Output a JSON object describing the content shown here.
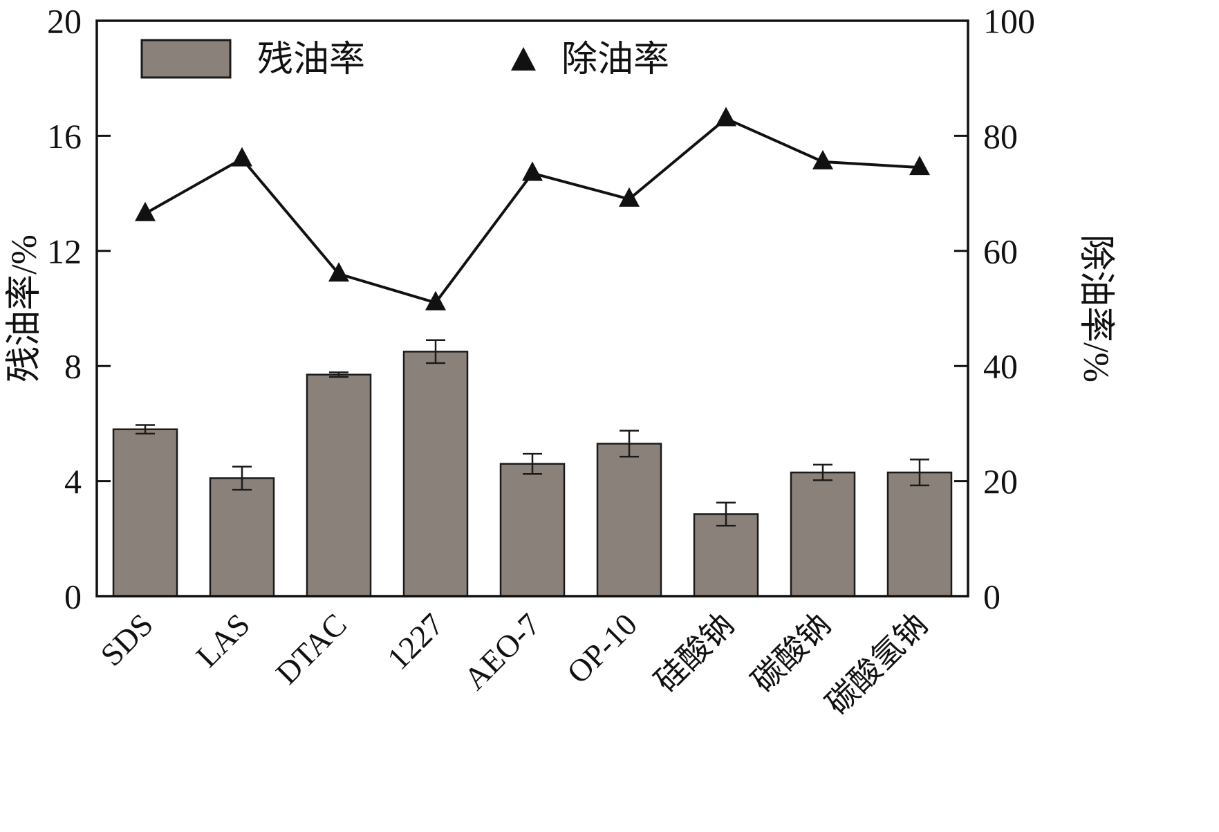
{
  "chart_data": {
    "type": "bar",
    "subtype": "bar+line-combo",
    "categories": [
      "SDS",
      "LAS",
      "DTAC",
      "1227",
      "AEO-7",
      "OP-10",
      "硅酸钠",
      "碳酸钠",
      "碳酸氢钠"
    ],
    "series": [
      {
        "name": "残油率",
        "type": "bar",
        "axis": "left",
        "values": [
          5.8,
          4.1,
          7.7,
          8.5,
          4.6,
          5.3,
          2.85,
          4.3,
          4.3
        ],
        "errors": [
          0.15,
          0.4,
          0.08,
          0.4,
          0.35,
          0.45,
          0.4,
          0.27,
          0.45
        ]
      },
      {
        "name": "除油率",
        "type": "line",
        "axis": "right",
        "values": [
          66.5,
          76,
          56,
          51,
          73.5,
          69,
          83,
          75.5,
          74.5
        ]
      }
    ],
    "left_axis": {
      "label": "残油率/%",
      "min": 0,
      "max": 20,
      "ticks": [
        0,
        4,
        8,
        12,
        16,
        20
      ]
    },
    "right_axis": {
      "label": "除油率/%",
      "min": 0,
      "max": 100,
      "ticks": [
        0,
        20,
        40,
        60,
        80,
        100
      ]
    },
    "legend": [
      {
        "label": "残油率",
        "marker": "bar-swatch"
      },
      {
        "label": "除油率",
        "marker": "triangle"
      }
    ],
    "legend_position": "top-inside",
    "grid": false,
    "colors": {
      "bar_fill": "#8a817a",
      "bar_stroke": "#1a1a1a",
      "line": "#111111",
      "marker": "#111111",
      "axis": "#111111",
      "background": "#ffffff"
    }
  }
}
